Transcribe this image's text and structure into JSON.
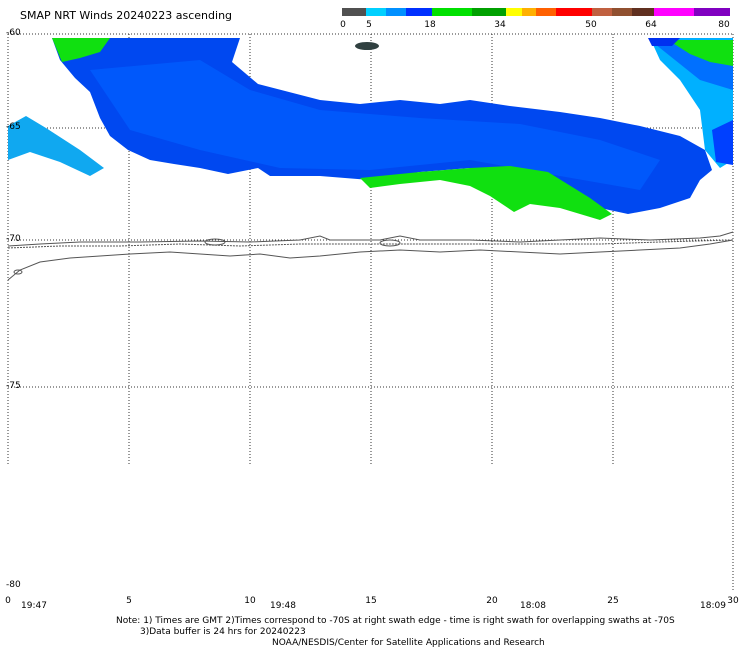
{
  "title": "SMAP NRT Winds 20240223 ascending",
  "colorbar": {
    "labels": [
      "0",
      "5",
      "18",
      "34",
      "50",
      "64",
      "80"
    ],
    "colors": [
      "#505050",
      "#808080",
      "#00c8ff",
      "#0096ff",
      "#0040ff",
      "#00e000",
      "#00b000",
      "#ffff00",
      "#ffb000",
      "#ff6000",
      "#ff0000",
      "#d00000",
      "#c08060",
      "#805040",
      "#ff00ff",
      "#8000c0"
    ]
  },
  "map": {
    "lat_labels": [
      "-60",
      "-65",
      "-70",
      "-75",
      "-80"
    ],
    "lon_labels": [
      "0",
      "5",
      "10",
      "15",
      "20",
      "25",
      "30"
    ],
    "time_labels": [
      "19:47",
      "19:48",
      "18:08",
      "18:09"
    ]
  },
  "notes": {
    "line1": "Note: 1) Times are GMT 2)Times correspond to -70S at right swath edge - time is right swath for overlapping swaths at -70S",
    "line2": "3)Data buffer is 24 hrs for 20240223",
    "line3": "NOAA/NESDIS/Center for Satellite Applications and Research"
  }
}
